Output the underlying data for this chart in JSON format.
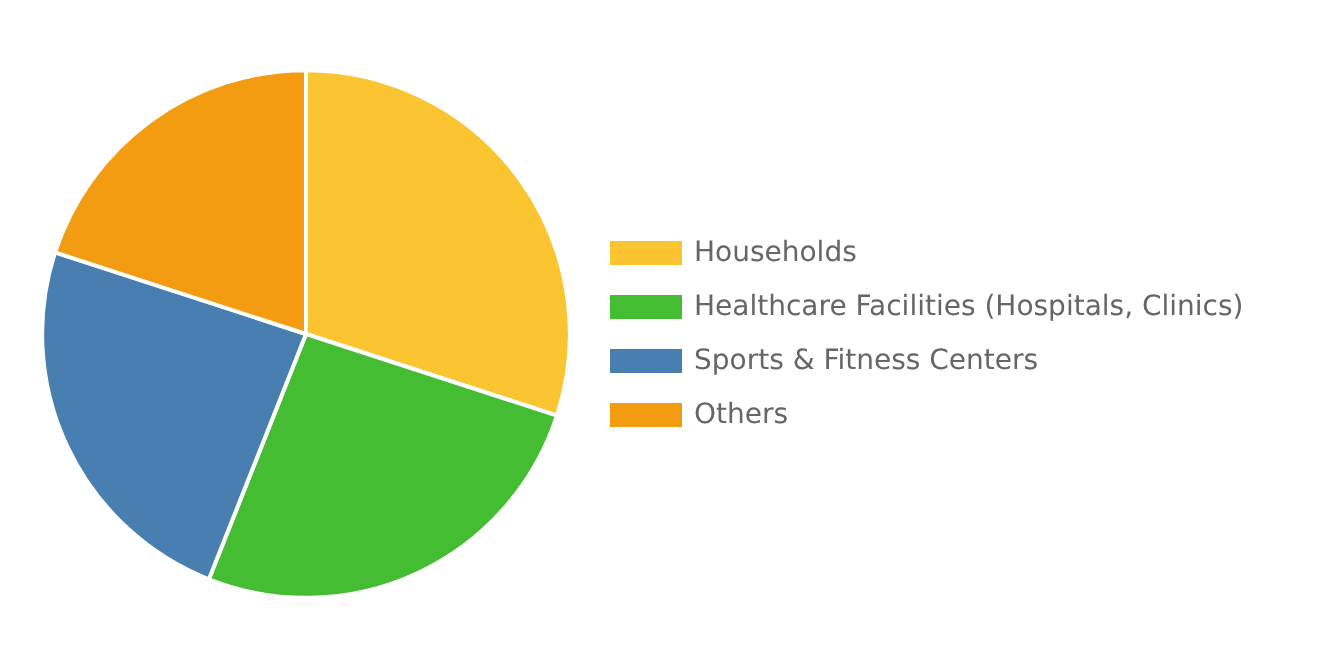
{
  "chart_data": {
    "type": "pie",
    "categories": [
      "Households",
      "Healthcare Facilities (Hospitals, Clinics)",
      "Sports & Fitness Centers",
      "Others"
    ],
    "values": [
      30,
      26,
      24,
      20
    ],
    "colors": [
      "#fbc531",
      "#44bd32",
      "#487eb0",
      "#f39c12"
    ],
    "legend": "right"
  }
}
